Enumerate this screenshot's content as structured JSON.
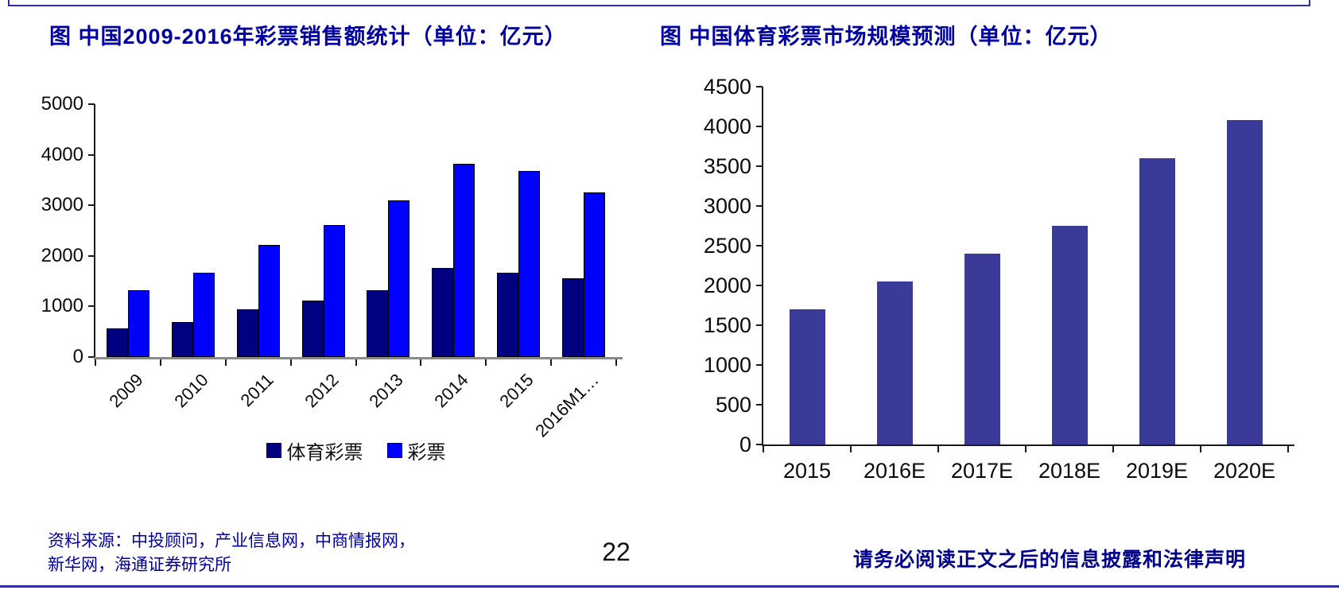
{
  "page": {
    "number": "22",
    "disclaimer": "请务必阅读正文之后的信息披露和法律声明",
    "source_line1": "资料来源：中投顾问，产业信息网，中商情报网，",
    "source_line2": "新华网，海通证券研究所"
  },
  "left_title_parts": {
    "prefix": "图 中国",
    "bold": "2009-2016",
    "suffix": "年彩票销售额统计（单位：亿元）"
  },
  "colors": {
    "title_blue": "#0000a0",
    "disclaimer_blue": "#00008b",
    "rule_navy": "#2e2ea0",
    "sports_lottery_bar": "#000080",
    "lottery_bar": "#0000fe",
    "forecast_bar": "#3a3a99"
  },
  "chart_data": [
    {
      "type": "bar",
      "title": "图 中国2009-2016年彩票销售额统计（单位：亿元）",
      "categories": [
        "2009",
        "2010",
        "2011",
        "2012",
        "2013",
        "2014",
        "2015",
        "2016M1…"
      ],
      "series": [
        {
          "name": "体育彩票",
          "color": "#000080",
          "values": [
            565,
            697,
            938,
            1110,
            1328,
            1764,
            1664,
            1560
          ]
        },
        {
          "name": "彩票",
          "color": "#0000fe",
          "values": [
            1325,
            1662,
            2215,
            2615,
            3093,
            3824,
            3679,
            3250
          ]
        }
      ],
      "xlabel": "",
      "ylabel": "",
      "ylim": [
        0,
        5000
      ],
      "yticks": [
        0,
        1000,
        2000,
        3000,
        4000,
        5000
      ],
      "grid": false,
      "legend": {
        "show": true,
        "position": "bottom"
      }
    },
    {
      "type": "bar",
      "title": "图 中国体育彩票市场规模预测（单位：亿元）",
      "categories": [
        "2015",
        "2016E",
        "2017E",
        "2018E",
        "2019E",
        "2020E"
      ],
      "series": [
        {
          "name": "体育彩票市场规模",
          "color": "#3a3a99",
          "values": [
            1700,
            2050,
            2400,
            2750,
            3600,
            4080
          ]
        }
      ],
      "xlabel": "",
      "ylabel": "",
      "ylim": [
        0,
        4500
      ],
      "yticks": [
        0,
        500,
        1000,
        1500,
        2000,
        2500,
        3000,
        3500,
        4000,
        4500
      ],
      "grid": false,
      "legend": {
        "show": false
      }
    }
  ]
}
